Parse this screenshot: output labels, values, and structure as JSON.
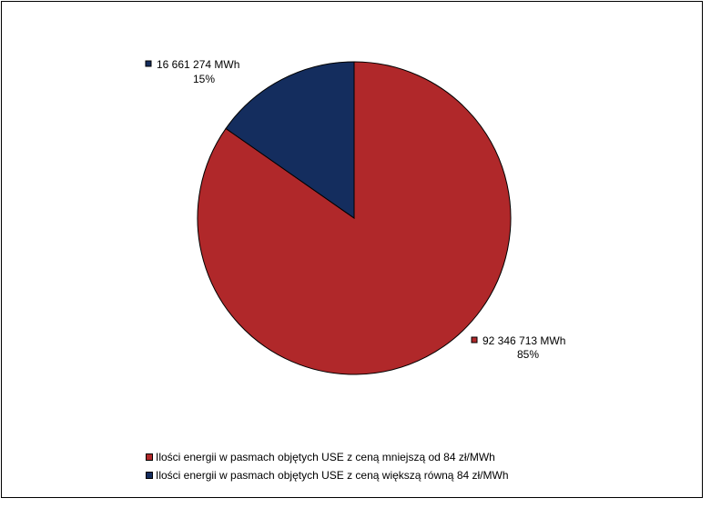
{
  "chart_data": {
    "type": "pie",
    "title": "",
    "slices": [
      {
        "name": "Ilości energii w pasmach objętych USE z ceną mniejszą od 84 zł/MWh",
        "value": 92346713,
        "value_label": "92 346 713 MWh",
        "percent_label": "85%",
        "color": "#B0282A"
      },
      {
        "name": "Ilości energii w pasmach objętych USE z ceną większą równą 84 zł/MWh",
        "value": 16661274,
        "value_label": "16 661 274 MWh",
        "percent_label": "15%",
        "color": "#142D5E"
      }
    ],
    "start_angle_deg": 0,
    "direction": "clockwise",
    "legend_position": "bottom"
  }
}
